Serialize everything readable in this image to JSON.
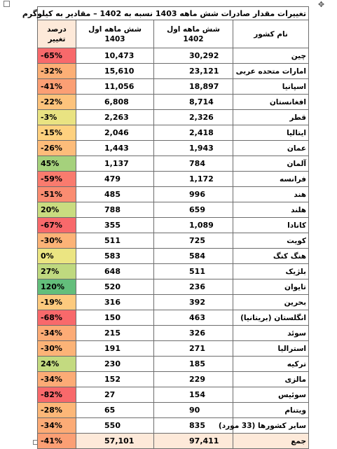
{
  "title": "تغییرات مقدار صادرات شش ماهه 1403 نسبه به 1402 – مقادیر به کیلوگرم",
  "headers": {
    "country": "نام کشور",
    "y1402": "شش ماهه اول 1402",
    "y1403": "شش ماهه اول 1403",
    "change_line1": "درصد",
    "change_line2": "تغییر"
  },
  "rows": [
    {
      "country": "چین",
      "v1402": "30,292",
      "v1403": "10,473",
      "change": "-65%",
      "color": "#f8696b"
    },
    {
      "country": "امارات متحده عربی",
      "v1402": "23,121",
      "v1403": "15,610",
      "change": "-32%",
      "color": "#fcaf76"
    },
    {
      "country": "اسپانیا",
      "v1402": "18,897",
      "v1403": "11,056",
      "change": "-41%",
      "color": "#fb9f74"
    },
    {
      "country": "افغانستان",
      "v1402": "8,714",
      "v1403": "6,808",
      "change": "-22%",
      "color": "#fdc37c"
    },
    {
      "country": "قطر",
      "v1402": "2,326",
      "v1403": "2,263",
      "change": "-3%",
      "color": "#e9e382"
    },
    {
      "country": "ایتالیا",
      "v1402": "2,418",
      "v1403": "2,046",
      "change": "-15%",
      "color": "#fed17f"
    },
    {
      "country": "عمان",
      "v1402": "1,943",
      "v1403": "1,443",
      "change": "-26%",
      "color": "#fdbc7a"
    },
    {
      "country": "آلمان",
      "v1402": "784",
      "v1403": "1,137",
      "change": "45%",
      "color": "#a5d17c"
    },
    {
      "country": "فرانسه",
      "v1402": "1,172",
      "v1403": "479",
      "change": "-59%",
      "color": "#f97b6e"
    },
    {
      "country": "هند",
      "v1402": "996",
      "v1403": "485",
      "change": "-51%",
      "color": "#fa8c71"
    },
    {
      "country": "هلند",
      "v1402": "659",
      "v1403": "788",
      "change": "20%",
      "color": "#c9dc80"
    },
    {
      "country": "کانادا",
      "v1402": "1,089",
      "v1403": "355",
      "change": "-67%",
      "color": "#f8696b"
    },
    {
      "country": "کویت",
      "v1402": "725",
      "v1403": "511",
      "change": "-30%",
      "color": "#fcb377"
    },
    {
      "country": "هنگ کنگ",
      "v1402": "584",
      "v1403": "583",
      "change": "0%",
      "color": "#ebe582"
    },
    {
      "country": "بلژیک",
      "v1402": "511",
      "v1403": "648",
      "change": "27%",
      "color": "#bfd97f"
    },
    {
      "country": "تایوان",
      "v1402": "236",
      "v1403": "520",
      "change": "120%",
      "color": "#63be7b"
    },
    {
      "country": "بحرین",
      "v1402": "392",
      "v1403": "316",
      "change": "-19%",
      "color": "#fdca7e"
    },
    {
      "country": "انگلستان (بریتانیا)",
      "v1402": "463",
      "v1403": "150",
      "change": "-68%",
      "color": "#f8696b"
    },
    {
      "country": "سوئد",
      "v1402": "326",
      "v1403": "215",
      "change": "-34%",
      "color": "#fcab76"
    },
    {
      "country": "استرالیا",
      "v1402": "271",
      "v1403": "191",
      "change": "-30%",
      "color": "#fcb377"
    },
    {
      "country": "ترکیه",
      "v1402": "185",
      "v1403": "230",
      "change": "24%",
      "color": "#c3da80"
    },
    {
      "country": "مالزی",
      "v1402": "229",
      "v1403": "152",
      "change": "-34%",
      "color": "#fcab76"
    },
    {
      "country": "سوئیس",
      "v1402": "154",
      "v1403": "27",
      "change": "-82%",
      "color": "#f8696b"
    },
    {
      "country": "ویتنام",
      "v1402": "90",
      "v1403": "65",
      "change": "-28%",
      "color": "#fcb778"
    },
    {
      "country": "سایر کشورها (33 مورد)",
      "v1402": "835",
      "v1403": "550",
      "change": "-34%",
      "color": "#fcab76"
    }
  ],
  "total": {
    "country": "جمع",
    "v1402": "97,411",
    "v1403": "57,101",
    "change": "-41%",
    "color": "#fb9f74"
  }
}
